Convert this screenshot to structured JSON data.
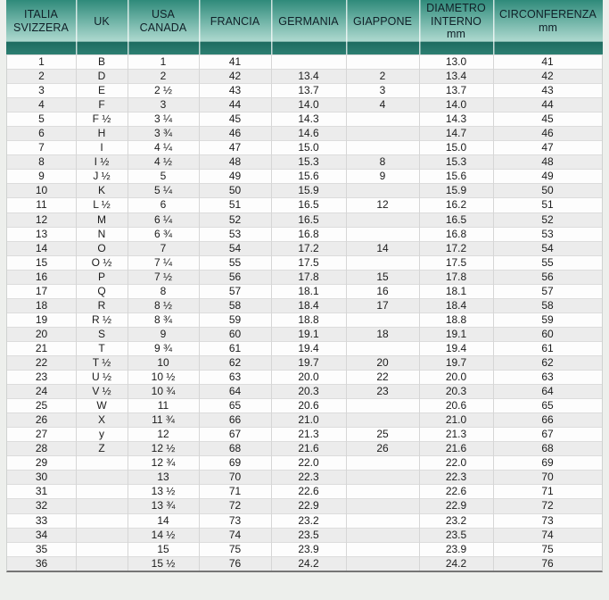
{
  "theme": {
    "colors": {
      "header_grad_top": "#2f8a7a",
      "header_grad_mid": "#6fb3a6",
      "header_grad_light": "#abd7cd",
      "header_band": "#1d6b60",
      "header_band_2": "#2d7f72",
      "header_text": "#102028",
      "body_text": "#1c1c1c",
      "row_alt": "#ececec",
      "row_white": "#fdfdfd",
      "row_line": "#dcdcdc",
      "col_line": "#d6d6d6",
      "table_edge": "#cfd2d0",
      "bottom_border": "#757575",
      "page_bg": "#edefec"
    }
  },
  "chart_data": {
    "type": "table",
    "title": "Ring size conversion table (Italia/Svizzera, UK, USA/Canada, Francia, Germania, Giappone, diametro interno, circonferenza)",
    "columns": [
      {
        "id": "italia-svizzera",
        "label": "ITALIA\nSVIZZERA"
      },
      {
        "id": "uk",
        "label": "UK"
      },
      {
        "id": "usa-canada",
        "label": "USA\nCANADA"
      },
      {
        "id": "francia",
        "label": "FRANCIA"
      },
      {
        "id": "germania",
        "label": "GERMANIA"
      },
      {
        "id": "giappone",
        "label": "GIAPPONE"
      },
      {
        "id": "diametro-interno-mm",
        "label": "DIAMETRO\nINTERNO\nmm"
      },
      {
        "id": "circonferenza-mm",
        "label": "CIRCONFERENZA\nmm"
      }
    ],
    "rows": [
      [
        "1",
        "B",
        "1",
        "41",
        "",
        "",
        "13.0",
        "41"
      ],
      [
        "2",
        "D",
        "2",
        "42",
        "13.4",
        "2",
        "13.4",
        "42"
      ],
      [
        "3",
        "E",
        "2 ½",
        "43",
        "13.7",
        "3",
        "13.7",
        "43"
      ],
      [
        "4",
        "F",
        "3",
        "44",
        "14.0",
        "4",
        "14.0",
        "44"
      ],
      [
        "5",
        "F ½",
        "3 ¼",
        "45",
        "14.3",
        "",
        "14.3",
        "45"
      ],
      [
        "6",
        "H",
        "3 ¾",
        "46",
        "14.6",
        "",
        "14.7",
        "46"
      ],
      [
        "7",
        "I",
        "4 ¼",
        "47",
        "15.0",
        "",
        "15.0",
        "47"
      ],
      [
        "8",
        "I ½",
        "4 ½",
        "48",
        "15.3",
        "8",
        "15.3",
        "48"
      ],
      [
        "9",
        "J ½",
        "5",
        "49",
        "15.6",
        "9",
        "15.6",
        "49"
      ],
      [
        "10",
        "K",
        "5 ¼",
        "50",
        "15.9",
        "",
        "15.9",
        "50"
      ],
      [
        "11",
        "L ½",
        "6",
        "51",
        "16.5",
        "12",
        "16.2",
        "51"
      ],
      [
        "12",
        "M",
        "6 ¼",
        "52",
        "16.5",
        "",
        "16.5",
        "52"
      ],
      [
        "13",
        "N",
        "6 ¾",
        "53",
        "16.8",
        "",
        "16.8",
        "53"
      ],
      [
        "14",
        "O",
        "7",
        "54",
        "17.2",
        "14",
        "17.2",
        "54"
      ],
      [
        "15",
        "O ½",
        "7 ¼",
        "55",
        "17.5",
        "",
        "17.5",
        "55"
      ],
      [
        "16",
        "P",
        "7 ½",
        "56",
        "17.8",
        "15",
        "17.8",
        "56"
      ],
      [
        "17",
        "Q",
        "8",
        "57",
        "18.1",
        "16",
        "18.1",
        "57"
      ],
      [
        "18",
        "R",
        "8 ½",
        "58",
        "18.4",
        "17",
        "18.4",
        "58"
      ],
      [
        "19",
        "R ½",
        "8 ¾",
        "59",
        "18.8",
        "",
        "18.8",
        "59"
      ],
      [
        "20",
        "S",
        "9",
        "60",
        "19.1",
        "18",
        "19.1",
        "60"
      ],
      [
        "21",
        "T",
        "9 ¾",
        "61",
        "19.4",
        "",
        "19.4",
        "61"
      ],
      [
        "22",
        "T ½",
        "10",
        "62",
        "19.7",
        "20",
        "19.7",
        "62"
      ],
      [
        "23",
        "U ½",
        "10 ½",
        "63",
        "20.0",
        "22",
        "20.0",
        "63"
      ],
      [
        "24",
        "V ½",
        "10 ¾",
        "64",
        "20.3",
        "23",
        "20.3",
        "64"
      ],
      [
        "25",
        "W",
        "11",
        "65",
        "20.6",
        "",
        "20.6",
        "65"
      ],
      [
        "26",
        "X",
        "11 ¾",
        "66",
        "21.0",
        "",
        "21.0",
        "66"
      ],
      [
        "27",
        "y",
        "12",
        "67",
        "21.3",
        "25",
        "21.3",
        "67"
      ],
      [
        "28",
        "Z",
        "12 ½",
        "68",
        "21.6",
        "26",
        "21.6",
        "68"
      ],
      [
        "29",
        "",
        "12 ¾",
        "69",
        "22.0",
        "",
        "22.0",
        "69"
      ],
      [
        "30",
        "",
        "13",
        "70",
        "22.3",
        "",
        "22.3",
        "70"
      ],
      [
        "31",
        "",
        "13 ½",
        "71",
        "22.6",
        "",
        "22.6",
        "71"
      ],
      [
        "32",
        "",
        "13 ¾",
        "72",
        "22.9",
        "",
        "22.9",
        "72"
      ],
      [
        "33",
        "",
        "14",
        "73",
        "23.2",
        "",
        "23.2",
        "73"
      ],
      [
        "34",
        "",
        "14 ½",
        "74",
        "23.5",
        "",
        "23.5",
        "74"
      ],
      [
        "35",
        "",
        "15",
        "75",
        "23.9",
        "",
        "23.9",
        "75"
      ],
      [
        "36",
        "",
        "15 ½",
        "76",
        "24.2",
        "",
        "24.2",
        "76"
      ]
    ]
  }
}
